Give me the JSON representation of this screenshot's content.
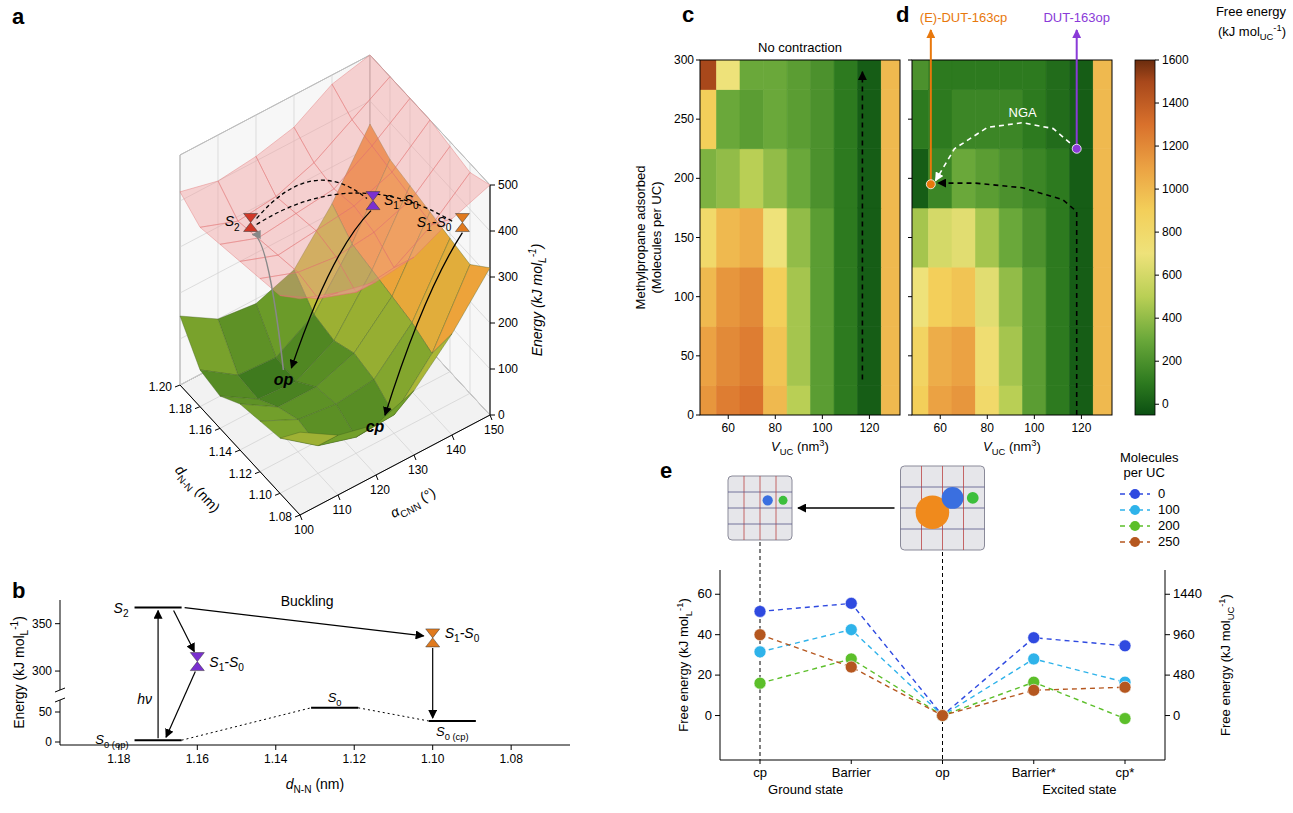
{
  "chart_data": [
    {
      "type": "surface3d",
      "panel": "a",
      "x_label": [
        "d",
        "N-N",
        " (nm)"
      ],
      "y_label": [
        "α",
        "CNN",
        " (°)"
      ],
      "z_label": [
        "Energy (kJ mol",
        "L",
        "-1",
        ")"
      ],
      "x": [
        1.08,
        1.1,
        1.12,
        1.14,
        1.16,
        1.18,
        1.2
      ],
      "y": [
        100,
        110,
        120,
        130,
        140,
        150
      ],
      "xlim": [
        1.08,
        1.2
      ],
      "ylim": [
        100,
        150
      ],
      "zlim": [
        0,
        500
      ],
      "xticks": [
        1.08,
        {
          "value": 1.1,
          "label": "1.10"
        },
        1.12,
        1.14,
        1.16,
        1.18,
        {
          "value": 1.2,
          "label": "1.20"
        }
      ],
      "yticks": [
        100,
        110,
        120,
        130,
        140,
        150
      ],
      "zticks": [
        0,
        100,
        200,
        300,
        400,
        500
      ],
      "z_ground": [
        [
          180,
          130,
          110,
          140,
          220,
          320
        ],
        [
          120,
          60,
          35,
          40,
          130,
          280
        ],
        [
          110,
          70,
          60,
          70,
          150,
          290
        ],
        [
          100,
          50,
          50,
          80,
          160,
          300
        ],
        [
          70,
          20,
          15,
          60,
          170,
          310
        ],
        [
          80,
          25,
          20,
          70,
          180,
          320
        ],
        [
          150,
          100,
          90,
          120,
          220,
          350
        ]
      ],
      "z_excited": [
        [
          470,
          440,
          420,
          430,
          470,
          500
        ],
        [
          430,
          380,
          350,
          360,
          410,
          480
        ],
        [
          420,
          390,
          380,
          390,
          420,
          490
        ],
        [
          410,
          380,
          390,
          400,
          430,
          500
        ],
        [
          400,
          370,
          380,
          390,
          440,
          500
        ],
        [
          390,
          360,
          370,
          400,
          450,
          500
        ],
        [
          420,
          400,
          410,
          430,
          480,
          500
        ]
      ],
      "points": [
        {
          "label": [
            "S",
            "2"
          ],
          "x": 1.175,
          "y": 112,
          "z": 360,
          "color": "#d03828"
        },
        {
          "label": [
            "S",
            "1",
            "-S",
            "0"
          ],
          "x": 1.14,
          "y": 135,
          "z": 390,
          "color": "#7a30d0"
        },
        {
          "label": [
            "S",
            "1",
            "-S",
            "0"
          ],
          "x": 1.1,
          "y": 148,
          "z": 380,
          "color": "#e07a1e"
        },
        {
          "label": [
            "op"
          ],
          "x": 1.165,
          "y": 118,
          "z": 15
        },
        {
          "label": [
            "cp"
          ],
          "x": 1.1,
          "y": 125,
          "z": 35
        }
      ]
    },
    {
      "type": "energy_diagram",
      "panel": "b",
      "x_label": [
        "d",
        "N-N",
        " (nm)"
      ],
      "y_label": [
        "Energy  (kJ mol",
        "L",
        "-1",
        ")"
      ],
      "xlim": [
        1.195,
        1.065
      ],
      "xticks": [
        1.18,
        1.16,
        1.14,
        1.12,
        {
          "value": 1.1,
          "label": "1.10"
        },
        1.08
      ],
      "ylim": [
        -5,
        375
      ],
      "axis_break": [
        70,
        280
      ],
      "yticks": [
        0,
        50,
        300,
        350
      ],
      "levels": [
        {
          "label": [
            "S",
            "0",
            " (op)"
          ],
          "x": [
            1.176,
            1.164
          ],
          "value": 3
        },
        {
          "label": [
            "S",
            "0"
          ],
          "x": [
            1.131,
            1.119
          ],
          "value": 57
        },
        {
          "label": [
            "S",
            "0",
            " (cp)"
          ],
          "x": [
            1.101,
            1.089
          ],
          "value": 35
        },
        {
          "label": [
            "S",
            "2"
          ],
          "x": [
            1.176,
            1.164
          ],
          "value": 367
        }
      ],
      "points": [
        {
          "label": [
            "S",
            "1",
            "-S",
            "0"
          ],
          "x": 1.16,
          "value": 310,
          "color": "#7a30d0"
        },
        {
          "label": [
            "S",
            "1",
            "-S",
            "0"
          ],
          "x": 1.1,
          "value": 335,
          "color": "#e07a1e"
        }
      ],
      "annotations": [
        "hν",
        "Buckling"
      ]
    },
    {
      "type": "heatmap",
      "panel": "c",
      "title": "No contraction",
      "x_label": [
        "V",
        "UC",
        " (nm",
        "3",
        ")"
      ],
      "y_label": [
        "Methylpropane adsorbed",
        "(Molecules per UC)"
      ],
      "x": [
        50,
        60,
        70,
        80,
        90,
        100,
        110,
        120,
        130
      ],
      "y": [
        0,
        50,
        100,
        150,
        200,
        250,
        300
      ],
      "cells": [
        [
          1150,
          1250,
          1300,
          1000,
          500,
          250,
          100,
          0,
          1000
        ],
        [
          1100,
          1200,
          1250,
          950,
          450,
          250,
          100,
          0,
          1000
        ],
        [
          1000,
          1150,
          1200,
          900,
          450,
          250,
          100,
          0,
          1000
        ],
        [
          800,
          1000,
          1050,
          700,
          400,
          250,
          100,
          0,
          1000
        ],
        [
          350,
          400,
          500,
          400,
          300,
          200,
          100,
          0,
          1000
        ],
        [
          900,
          300,
          250,
          300,
          250,
          200,
          100,
          0,
          1000
        ],
        [
          1500,
          700,
          300,
          300,
          250,
          200,
          100,
          0,
          1000
        ]
      ],
      "xlim": [
        48,
        133
      ],
      "ylim": [
        0,
        300
      ],
      "xticks": [
        60,
        80,
        100,
        120
      ],
      "yticks": [
        0,
        50,
        100,
        150,
        200,
        250,
        300
      ],
      "paths": [
        {
          "x": [
            117,
            117
          ],
          "y": [
            30,
            290
          ],
          "color": "#000000"
        }
      ]
    },
    {
      "type": "heatmap",
      "panel": "d",
      "tick_labels": "x",
      "x_label": [
        "V",
        "UC",
        " (nm",
        "3",
        ")"
      ],
      "x": [
        50,
        60,
        70,
        80,
        90,
        100,
        110,
        120,
        130
      ],
      "y": [
        0,
        50,
        100,
        150,
        200,
        250,
        300
      ],
      "cells": [
        [
          900,
          1100,
          1150,
          800,
          500,
          250,
          100,
          0,
          1000
        ],
        [
          850,
          1050,
          1100,
          750,
          450,
          250,
          100,
          0,
          1000
        ],
        [
          700,
          900,
          950,
          650,
          400,
          250,
          100,
          0,
          1000
        ],
        [
          450,
          600,
          650,
          450,
          300,
          200,
          100,
          0,
          1000
        ],
        [
          0,
          150,
          300,
          250,
          200,
          150,
          100,
          0,
          1000
        ],
        [
          100,
          100,
          150,
          150,
          150,
          100,
          50,
          0,
          1000
        ],
        [
          200,
          100,
          100,
          100,
          100,
          100,
          50,
          0,
          1000
        ]
      ],
      "xlim": [
        48,
        133
      ],
      "ylim": [
        0,
        300
      ],
      "xticks": [
        60,
        80,
        100,
        120
      ],
      "yticks": [
        0,
        50,
        100,
        150,
        200,
        250,
        300
      ],
      "points": [
        {
          "label": "(E)-DUT-163cp",
          "x": 56,
          "y": 195,
          "color": "#e8780c"
        },
        {
          "label": "DUT-163op",
          "x": 118,
          "y": 225,
          "color": "#8a3ad8"
        }
      ],
      "paths": [
        {
          "label": "NGA",
          "x": [
            118,
            108,
            95,
            80,
            66,
            58
          ],
          "y": [
            225,
            242,
            247,
            243,
            225,
            198
          ],
          "color": "#ffffff"
        },
        {
          "x": [
            118,
            118,
            112,
            95,
            75,
            59
          ],
          "y": [
            0,
            172,
            182,
            192,
            196,
            196
          ],
          "color": "#000000"
        }
      ],
      "colorbar": {
        "title": "Free energy",
        "unit": [
          "(kJ mol",
          "UC",
          "-1",
          ")"
        ],
        "range": [
          -50,
          1600
        ],
        "ticks": [
          0,
          200,
          400,
          600,
          800,
          1000,
          1200,
          1400,
          1600
        ]
      }
    },
    {
      "type": "line",
      "panel": "e",
      "categories": [
        "cp",
        "Barrier",
        "op",
        "Barrier*",
        "cp*"
      ],
      "groups": [
        {
          "label": "Ground state",
          "span": [
            0,
            1
          ]
        },
        {
          "label": "Excited state",
          "span": [
            3,
            4
          ]
        }
      ],
      "y_label": [
        "Free energy (kJ mol",
        "L",
        "-1",
        ")"
      ],
      "y2_label": [
        "Free energy  (kJ mol",
        "UC",
        "-1",
        ")"
      ],
      "ylim": [
        -22,
        72
      ],
      "yticks": [
        0,
        20,
        40,
        60
      ],
      "y2lim": [
        -528,
        1728
      ],
      "y2ticks": [
        0,
        480,
        960,
        1440
      ],
      "legend": "top-right",
      "legend_title": "Molecules per UC",
      "marker": "circle",
      "line_style": "dashed",
      "series": [
        {
          "name": "0",
          "color": "#2f4ae0",
          "values": [
            51.5,
            55.5,
            0,
            38.5,
            34.5
          ]
        },
        {
          "name": "100",
          "color": "#2fb3ea",
          "values": [
            31.5,
            42.5,
            0,
            28,
            16.5
          ]
        },
        {
          "name": "200",
          "color": "#5cbf2a",
          "values": [
            16,
            28,
            0,
            16.5,
            -1.5
          ]
        },
        {
          "name": "250",
          "color": "#b5571f",
          "values": [
            40,
            24,
            0,
            12.5,
            14
          ]
        }
      ]
    }
  ]
}
